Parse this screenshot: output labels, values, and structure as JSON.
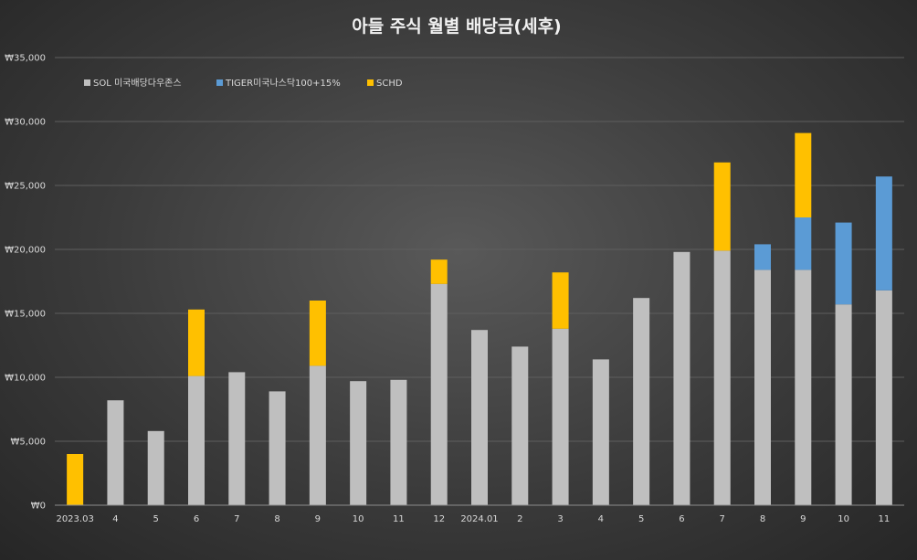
{
  "chart_data": {
    "type": "bar",
    "stacked": true,
    "title": "아들 주식 월별 배당금(세후)",
    "xlabel": "",
    "ylabel": "",
    "ylim": [
      0,
      35000
    ],
    "y_ticks": [
      "₩0",
      "₩5,000",
      "₩10,000",
      "₩15,000",
      "₩20,000",
      "₩25,000",
      "₩30,000",
      "₩35,000"
    ],
    "grid": true,
    "legend_position": "top-left",
    "categories": [
      "2023.03",
      "4",
      "5",
      "6",
      "7",
      "8",
      "9",
      "10",
      "11",
      "12",
      "2024.01",
      "2",
      "3",
      "4",
      "5",
      "6",
      "7",
      "8",
      "9",
      "10",
      "11"
    ],
    "series": [
      {
        "name": "SOL 미국배당다우존스",
        "color": "#bfbfbf",
        "values": [
          0,
          8200,
          5800,
          10100,
          10400,
          8900,
          10900,
          9700,
          9800,
          17300,
          13700,
          12400,
          13800,
          11400,
          16200,
          19800,
          19900,
          18400,
          18400,
          15700,
          16800
        ]
      },
      {
        "name": "TIGER미국나스닥100+15%",
        "color": "#5b9bd5",
        "values": [
          0,
          0,
          0,
          0,
          0,
          0,
          0,
          0,
          0,
          0,
          0,
          0,
          0,
          0,
          0,
          0,
          0,
          2000,
          4100,
          6400,
          8900
        ]
      },
      {
        "name": "SCHD",
        "color": "#ffc000",
        "values": [
          4000,
          0,
          0,
          5200,
          0,
          0,
          5100,
          0,
          0,
          1900,
          0,
          0,
          4400,
          0,
          0,
          0,
          6900,
          0,
          6600,
          0,
          0
        ]
      }
    ]
  }
}
